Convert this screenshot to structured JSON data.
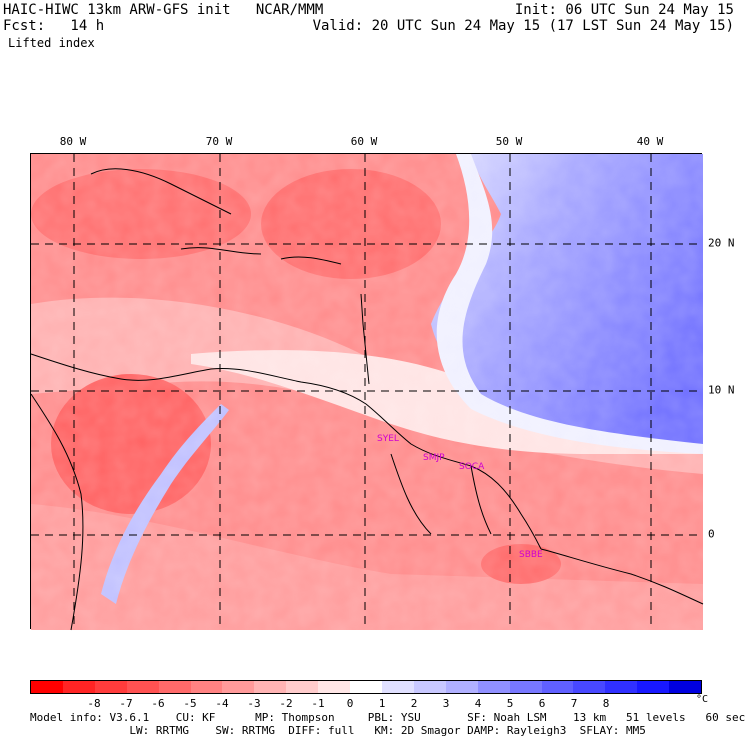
{
  "header": {
    "line1_left": "HAIC-HIWC 13km ARW-GFS init   NCAR/MMM",
    "line1_right": "Init: 06 UTC Sun 24 May 15",
    "line2_left": "Fcst:   14 h",
    "line2_right": "Valid: 20 UTC Sun 24 May 15 (17 LST Sun 24 May 15)",
    "field": "Lifted index"
  },
  "map": {
    "lon_labels": [
      "80 W",
      "70 W",
      "60 W",
      "50 W",
      "40 W"
    ],
    "lat_labels": [
      "20 N",
      "10 N",
      "0"
    ],
    "stations": [
      "SYEL",
      "SMJP",
      "SOCA",
      "SBBE"
    ]
  },
  "colorbar": {
    "colors": [
      "#ff0000",
      "#ff2424",
      "#ff3c3c",
      "#ff5252",
      "#ff6a6a",
      "#ff8282",
      "#ff9a9a",
      "#ffb4b4",
      "#ffcccc",
      "#ffe6e6",
      "#ffffff",
      "#e0e0ff",
      "#c8c8ff",
      "#b0b0ff",
      "#9090ff",
      "#7878ff",
      "#6060ff",
      "#4848ff",
      "#3030ff",
      "#1818ff",
      "#0000e0"
    ],
    "labels": [
      "-8",
      "-7",
      "-6",
      "-5",
      "-4",
      "-3",
      "-2",
      "-1",
      "0",
      "1",
      "2",
      "3",
      "4",
      "5",
      "6",
      "7",
      "8"
    ],
    "unit": "°C"
  },
  "model_info": {
    "line1": "Model info: V3.6.1    CU: KF      MP: Thompson     PBL: YSU       SF: Noah LSM    13 km   51 levels   60 sec",
    "line2": "               LW: RRTMG    SW: RRTMG  DIFF: full   KM: 2D Smagor DAMP: Rayleigh3  SFLAY: MM5"
  }
}
